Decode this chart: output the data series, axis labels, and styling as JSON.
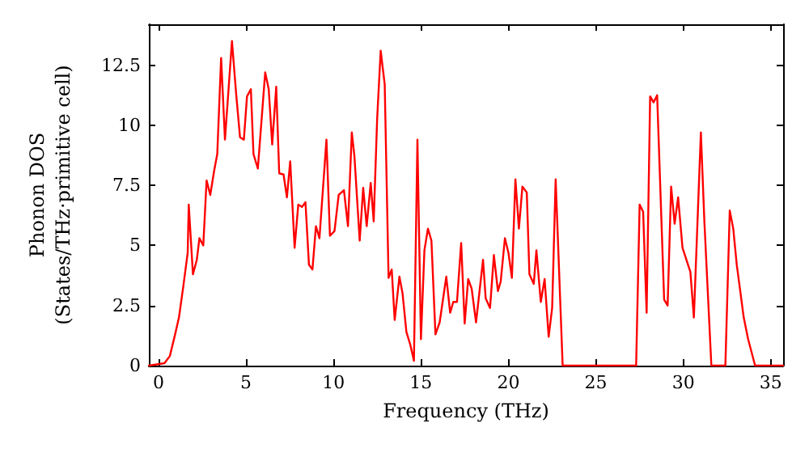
{
  "chart_data": {
    "type": "line",
    "xlabel": "Frequency (THz)",
    "ylabel": "Phonon DOS\n(States/THz·primitive cell)",
    "x": [
      -0.55,
      0.34,
      0.65,
      0.95,
      1.17,
      1.42,
      1.67,
      1.73,
      1.97,
      2.19,
      2.34,
      2.56,
      2.75,
      2.96,
      3.18,
      3.36,
      3.58,
      3.8,
      4.2,
      4.44,
      4.66,
      4.88,
      5.06,
      5.28,
      5.43,
      5.68,
      6.1,
      6.3,
      6.5,
      6.73,
      6.9,
      7.15,
      7.34,
      7.53,
      7.78,
      7.99,
      8.2,
      8.4,
      8.6,
      8.8,
      9.0,
      9.2,
      9.6,
      9.8,
      10.06,
      10.3,
      10.6,
      10.83,
      11.05,
      11.2,
      11.5,
      11.7,
      11.9,
      12.13,
      12.3,
      12.5,
      12.7,
      12.93,
      13.15,
      13.33,
      13.5,
      13.77,
      13.95,
      14.17,
      14.4,
      14.6,
      14.8,
      15.0,
      15.2,
      15.4,
      15.6,
      15.83,
      16.07,
      16.45,
      16.67,
      16.85,
      17.06,
      17.3,
      17.5,
      17.7,
      17.9,
      18.15,
      18.55,
      18.7,
      18.95,
      19.17,
      19.4,
      19.56,
      19.8,
      20.0,
      20.2,
      20.4,
      20.6,
      20.8,
      21.05,
      21.2,
      21.45,
      21.6,
      21.85,
      22.07,
      22.3,
      22.5,
      22.7,
      23.1,
      27.3,
      27.5,
      27.7,
      27.9,
      28.1,
      28.3,
      28.5,
      28.9,
      29.1,
      29.3,
      29.5,
      29.7,
      29.95,
      30.4,
      30.6,
      31.0,
      31.2,
      31.6,
      32.4,
      32.65,
      32.85,
      33.05,
      33.45,
      33.7,
      34.1,
      35.7
    ],
    "series": [
      {
        "color": "#ff0000",
        "values": [
          0,
          0.1,
          0.4,
          1.3,
          2.0,
          3.3,
          4.7,
          6.7,
          3.8,
          4.4,
          5.3,
          5.0,
          7.7,
          7.1,
          8.1,
          8.8,
          12.8,
          9.4,
          13.5,
          11.3,
          9.5,
          9.4,
          11.2,
          11.5,
          8.8,
          8.2,
          12.2,
          11.5,
          9.2,
          11.6,
          8.0,
          7.95,
          7.0,
          8.5,
          4.9,
          6.7,
          6.6,
          6.8,
          4.2,
          4.0,
          5.8,
          5.3,
          9.4,
          5.4,
          5.6,
          7.1,
          7.3,
          5.8,
          9.7,
          8.7,
          5.2,
          7.4,
          5.8,
          7.6,
          6.0,
          10.3,
          13.1,
          11.7,
          3.65,
          4.0,
          1.9,
          3.7,
          3.0,
          1.4,
          0.85,
          0.2,
          9.4,
          1.1,
          4.8,
          5.7,
          5.2,
          1.3,
          1.8,
          3.7,
          2.2,
          2.65,
          2.65,
          5.1,
          1.75,
          3.6,
          3.2,
          1.8,
          4.4,
          2.8,
          2.4,
          4.6,
          3.1,
          3.5,
          5.3,
          4.7,
          3.65,
          7.75,
          5.7,
          7.45,
          7.2,
          3.8,
          3.4,
          4.8,
          2.65,
          3.6,
          1.2,
          2.4,
          7.75,
          0,
          0,
          6.7,
          6.4,
          2.2,
          11.2,
          10.95,
          11.25,
          2.75,
          2.5,
          7.45,
          5.9,
          7.0,
          4.9,
          3.9,
          2.0,
          9.7,
          6.0,
          0,
          0,
          6.45,
          5.7,
          4.2,
          2.0,
          1.1,
          0,
          0
        ]
      }
    ],
    "xlim": [
      -0.55,
      35.7
    ],
    "xticks": [
      0,
      5,
      10,
      15,
      20,
      25,
      30,
      35
    ],
    "ylim": [
      0,
      14.2
    ],
    "yticks": [
      0,
      2.5,
      5,
      7.5,
      10,
      12.5
    ],
    "marker": "none",
    "line_style": "solid"
  }
}
